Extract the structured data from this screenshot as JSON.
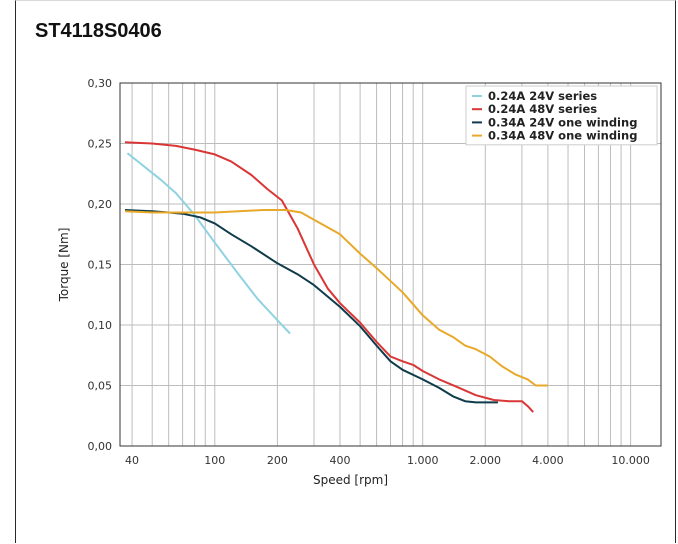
{
  "title": "ST4118S0406",
  "chart_data": {
    "type": "line",
    "title": "ST4118S0406",
    "xlabel": "Speed [rpm]",
    "ylabel": "Torque [Nm]",
    "x_scale": "log",
    "xlim": [
      35,
      14000
    ],
    "ylim": [
      0,
      0.3
    ],
    "x_ticks": [
      40,
      100,
      200,
      400,
      1000,
      2000,
      4000,
      10000
    ],
    "x_tick_labels": [
      "40",
      "100",
      "200",
      "400",
      "1.000",
      "2.000",
      "4.000",
      "10.000"
    ],
    "y_ticks": [
      0,
      0.05,
      0.1,
      0.15,
      0.2,
      0.25,
      0.3
    ],
    "y_tick_labels": [
      "0,00",
      "0,05",
      "0,10",
      "0,15",
      "0,20",
      "0,25",
      "0,30"
    ],
    "grid": true,
    "legend_position": "top-right",
    "series": [
      {
        "name": "0.24A 24V series",
        "color": "#8fd3e0",
        "points": [
          [
            38,
            0.242
          ],
          [
            45,
            0.232
          ],
          [
            55,
            0.22
          ],
          [
            65,
            0.209
          ],
          [
            80,
            0.191
          ],
          [
            100,
            0.168
          ],
          [
            130,
            0.142
          ],
          [
            160,
            0.122
          ],
          [
            200,
            0.104
          ],
          [
            230,
            0.093
          ]
        ]
      },
      {
        "name": "0.24A 48V series",
        "color": "#d93636",
        "points": [
          [
            37,
            0.251
          ],
          [
            50,
            0.25
          ],
          [
            65,
            0.248
          ],
          [
            80,
            0.245
          ],
          [
            100,
            0.241
          ],
          [
            120,
            0.235
          ],
          [
            150,
            0.224
          ],
          [
            180,
            0.212
          ],
          [
            210,
            0.203
          ],
          [
            250,
            0.18
          ],
          [
            300,
            0.15
          ],
          [
            350,
            0.13
          ],
          [
            400,
            0.118
          ],
          [
            500,
            0.102
          ],
          [
            600,
            0.086
          ],
          [
            700,
            0.074
          ],
          [
            800,
            0.07
          ],
          [
            900,
            0.067
          ],
          [
            1000,
            0.062
          ],
          [
            1200,
            0.055
          ],
          [
            1500,
            0.048
          ],
          [
            1800,
            0.042
          ],
          [
            2200,
            0.038
          ],
          [
            2600,
            0.037
          ],
          [
            3000,
            0.037
          ],
          [
            3200,
            0.033
          ],
          [
            3400,
            0.028
          ]
        ]
      },
      {
        "name": "0.34A 24V one winding",
        "color": "#0f3b4a",
        "points": [
          [
            37,
            0.195
          ],
          [
            50,
            0.194
          ],
          [
            60,
            0.193
          ],
          [
            70,
            0.192
          ],
          [
            85,
            0.189
          ],
          [
            100,
            0.184
          ],
          [
            120,
            0.175
          ],
          [
            150,
            0.165
          ],
          [
            200,
            0.151
          ],
          [
            250,
            0.142
          ],
          [
            300,
            0.133
          ],
          [
            400,
            0.115
          ],
          [
            500,
            0.099
          ],
          [
            600,
            0.083
          ],
          [
            700,
            0.07
          ],
          [
            800,
            0.063
          ],
          [
            1000,
            0.055
          ],
          [
            1200,
            0.048
          ],
          [
            1400,
            0.041
          ],
          [
            1600,
            0.037
          ],
          [
            1800,
            0.036
          ],
          [
            2000,
            0.036
          ],
          [
            2300,
            0.036
          ]
        ]
      },
      {
        "name": "0.34A 48V one winding",
        "color": "#e8a92a",
        "points": [
          [
            37,
            0.194
          ],
          [
            50,
            0.193
          ],
          [
            60,
            0.193
          ],
          [
            80,
            0.193
          ],
          [
            100,
            0.193
          ],
          [
            130,
            0.194
          ],
          [
            170,
            0.195
          ],
          [
            220,
            0.195
          ],
          [
            260,
            0.193
          ],
          [
            300,
            0.187
          ],
          [
            400,
            0.175
          ],
          [
            500,
            0.159
          ],
          [
            600,
            0.147
          ],
          [
            800,
            0.127
          ],
          [
            1000,
            0.108
          ],
          [
            1200,
            0.096
          ],
          [
            1400,
            0.09
          ],
          [
            1600,
            0.083
          ],
          [
            1800,
            0.08
          ],
          [
            2100,
            0.074
          ],
          [
            2400,
            0.066
          ],
          [
            2800,
            0.059
          ],
          [
            3200,
            0.055
          ],
          [
            3500,
            0.05
          ],
          [
            4000,
            0.05
          ]
        ]
      }
    ]
  }
}
